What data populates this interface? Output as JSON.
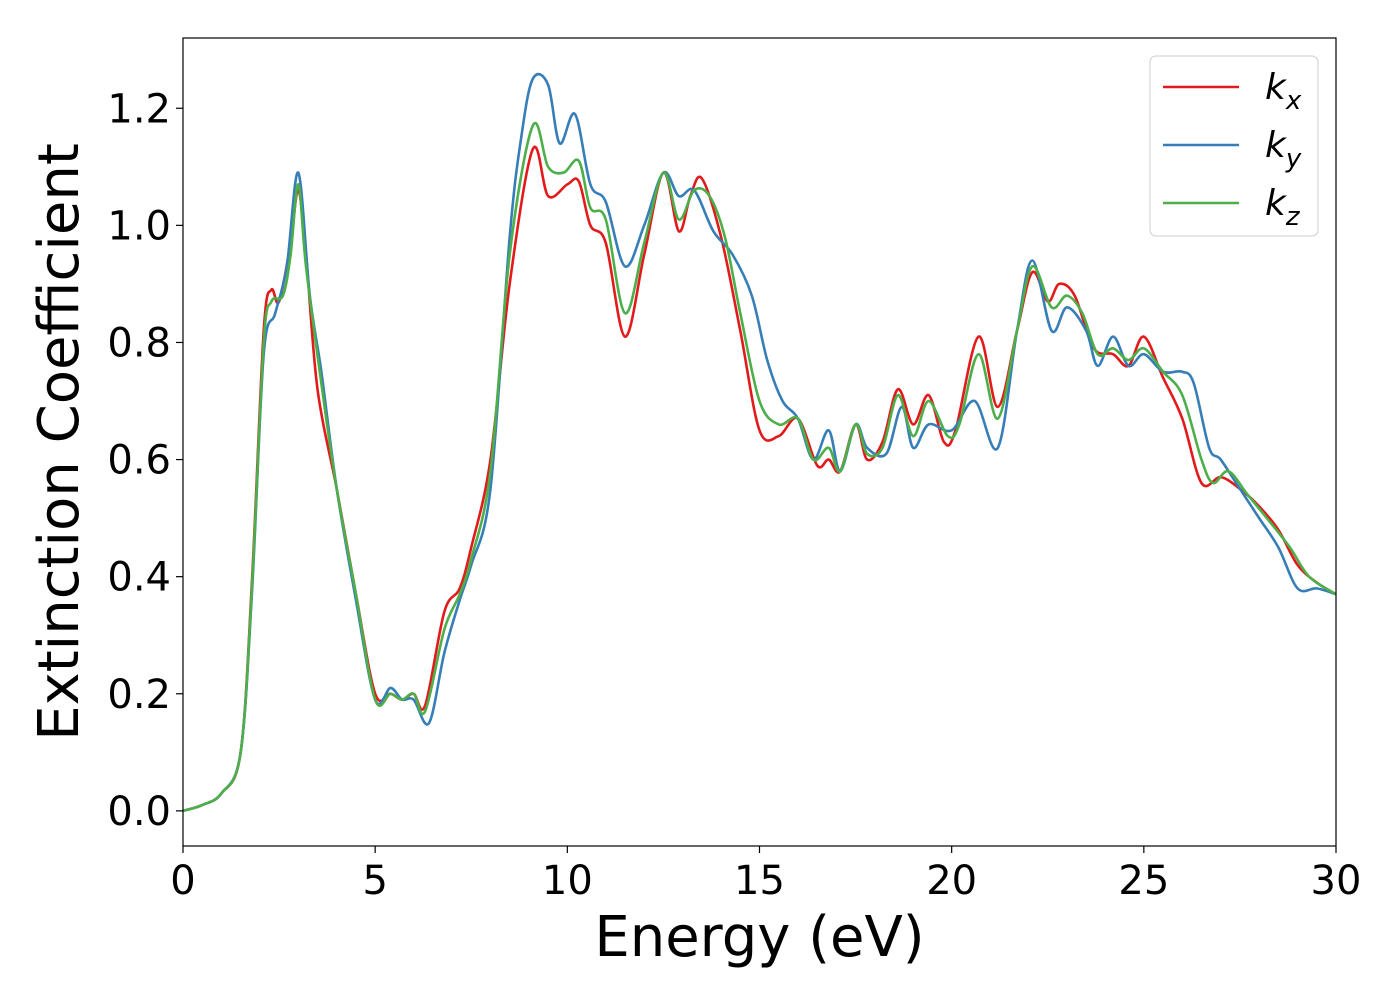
{
  "chart_data": {
    "type": "line",
    "title": "",
    "xlabel": "Energy (eV)",
    "ylabel": "Extinction Coefficient",
    "xlim": [
      0,
      30
    ],
    "ylim": [
      -0.06,
      1.32
    ],
    "xticks": [
      0,
      5,
      10,
      15,
      20,
      25,
      30
    ],
    "yticks": [
      0.0,
      0.2,
      0.4,
      0.6,
      0.8,
      1.0,
      1.2
    ],
    "xtick_labels": [
      "0",
      "5",
      "10",
      "15",
      "20",
      "25",
      "30"
    ],
    "ytick_labels": [
      "0.0",
      "0.2",
      "0.4",
      "0.6",
      "0.8",
      "1.0",
      "1.2"
    ],
    "grid": false,
    "legend_position": "top-right",
    "series": [
      {
        "name": "k_x",
        "label_base": "k",
        "label_sub": "x",
        "color": "#e31a1c",
        "points": [
          [
            0,
            0
          ],
          [
            0.5,
            0.01
          ],
          [
            1,
            0.03
          ],
          [
            1.5,
            0.1
          ],
          [
            1.8,
            0.4
          ],
          [
            2.1,
            0.82
          ],
          [
            2.3,
            0.89
          ],
          [
            2.5,
            0.87
          ],
          [
            2.8,
            0.97
          ],
          [
            3.0,
            1.06
          ],
          [
            3.2,
            0.95
          ],
          [
            3.5,
            0.72
          ],
          [
            4,
            0.55
          ],
          [
            4.5,
            0.37
          ],
          [
            5,
            0.2
          ],
          [
            5.4,
            0.2
          ],
          [
            5.7,
            0.19
          ],
          [
            6.0,
            0.2
          ],
          [
            6.3,
            0.18
          ],
          [
            6.8,
            0.34
          ],
          [
            7.2,
            0.38
          ],
          [
            7.5,
            0.45
          ],
          [
            8,
            0.6
          ],
          [
            8.5,
            0.9
          ],
          [
            9.1,
            1.13
          ],
          [
            9.5,
            1.05
          ],
          [
            10,
            1.07
          ],
          [
            10.3,
            1.075
          ],
          [
            10.6,
            1.0
          ],
          [
            11,
            0.97
          ],
          [
            11.5,
            0.81
          ],
          [
            12,
            0.95
          ],
          [
            12.5,
            1.09
          ],
          [
            12.9,
            0.99
          ],
          [
            13.2,
            1.05
          ],
          [
            13.5,
            1.08
          ],
          [
            14,
            0.98
          ],
          [
            14.5,
            0.82
          ],
          [
            15,
            0.65
          ],
          [
            15.5,
            0.64
          ],
          [
            16,
            0.67
          ],
          [
            16.5,
            0.59
          ],
          [
            16.8,
            0.6
          ],
          [
            17.1,
            0.58
          ],
          [
            17.5,
            0.66
          ],
          [
            17.8,
            0.6
          ],
          [
            18.2,
            0.63
          ],
          [
            18.6,
            0.72
          ],
          [
            19.0,
            0.66
          ],
          [
            19.4,
            0.71
          ],
          [
            19.8,
            0.63
          ],
          [
            20.1,
            0.65
          ],
          [
            20.7,
            0.81
          ],
          [
            21.2,
            0.69
          ],
          [
            21.7,
            0.82
          ],
          [
            22.1,
            0.92
          ],
          [
            22.5,
            0.87
          ],
          [
            22.8,
            0.9
          ],
          [
            23.2,
            0.88
          ],
          [
            23.7,
            0.79
          ],
          [
            24.2,
            0.78
          ],
          [
            24.6,
            0.76
          ],
          [
            25.0,
            0.81
          ],
          [
            25.5,
            0.74
          ],
          [
            26,
            0.67
          ],
          [
            26.5,
            0.56
          ],
          [
            27,
            0.57
          ],
          [
            27.5,
            0.55
          ],
          [
            28,
            0.52
          ],
          [
            28.5,
            0.48
          ],
          [
            29,
            0.42
          ],
          [
            29.5,
            0.39
          ],
          [
            30,
            0.37
          ]
        ]
      },
      {
        "name": "k_y",
        "label_base": "k",
        "label_sub": "y",
        "color": "#377eb8",
        "points": [
          [
            0,
            0
          ],
          [
            0.5,
            0.01
          ],
          [
            1,
            0.03
          ],
          [
            1.5,
            0.1
          ],
          [
            1.8,
            0.38
          ],
          [
            2.1,
            0.78
          ],
          [
            2.4,
            0.85
          ],
          [
            2.7,
            0.93
          ],
          [
            3.0,
            1.09
          ],
          [
            3.3,
            0.88
          ],
          [
            3.6,
            0.75
          ],
          [
            4,
            0.55
          ],
          [
            4.5,
            0.36
          ],
          [
            5,
            0.19
          ],
          [
            5.4,
            0.21
          ],
          [
            5.7,
            0.19
          ],
          [
            6.0,
            0.19
          ],
          [
            6.4,
            0.15
          ],
          [
            6.8,
            0.27
          ],
          [
            7.2,
            0.36
          ],
          [
            7.5,
            0.42
          ],
          [
            8,
            0.55
          ],
          [
            8.5,
            0.98
          ],
          [
            8.8,
            1.15
          ],
          [
            9.1,
            1.25
          ],
          [
            9.5,
            1.24
          ],
          [
            9.8,
            1.14
          ],
          [
            10.2,
            1.19
          ],
          [
            10.6,
            1.07
          ],
          [
            11,
            1.04
          ],
          [
            11.5,
            0.93
          ],
          [
            12,
            1.0
          ],
          [
            12.5,
            1.09
          ],
          [
            12.9,
            1.05
          ],
          [
            13.3,
            1.06
          ],
          [
            13.8,
            0.99
          ],
          [
            14.3,
            0.95
          ],
          [
            14.8,
            0.88
          ],
          [
            15.2,
            0.77
          ],
          [
            15.6,
            0.7
          ],
          [
            16,
            0.67
          ],
          [
            16.4,
            0.6
          ],
          [
            16.8,
            0.65
          ],
          [
            17.1,
            0.58
          ],
          [
            17.5,
            0.66
          ],
          [
            17.8,
            0.62
          ],
          [
            18.3,
            0.61
          ],
          [
            18.7,
            0.69
          ],
          [
            19.0,
            0.62
          ],
          [
            19.4,
            0.66
          ],
          [
            20.0,
            0.65
          ],
          [
            20.6,
            0.7
          ],
          [
            21.2,
            0.62
          ],
          [
            21.7,
            0.82
          ],
          [
            22.1,
            0.94
          ],
          [
            22.6,
            0.82
          ],
          [
            23.0,
            0.86
          ],
          [
            23.5,
            0.82
          ],
          [
            23.8,
            0.76
          ],
          [
            24.2,
            0.81
          ],
          [
            24.6,
            0.76
          ],
          [
            25.0,
            0.78
          ],
          [
            25.5,
            0.75
          ],
          [
            26.0,
            0.75
          ],
          [
            26.3,
            0.73
          ],
          [
            26.7,
            0.62
          ],
          [
            27,
            0.6
          ],
          [
            27.5,
            0.55
          ],
          [
            28,
            0.5
          ],
          [
            28.5,
            0.45
          ],
          [
            29,
            0.38
          ],
          [
            29.5,
            0.38
          ],
          [
            30,
            0.37
          ]
        ]
      },
      {
        "name": "k_z",
        "label_base": "k",
        "label_sub": "z",
        "color": "#4daf4a",
        "points": [
          [
            0,
            0
          ],
          [
            0.5,
            0.01
          ],
          [
            1,
            0.03
          ],
          [
            1.5,
            0.1
          ],
          [
            1.8,
            0.39
          ],
          [
            2.1,
            0.8
          ],
          [
            2.3,
            0.87
          ],
          [
            2.6,
            0.88
          ],
          [
            2.8,
            0.95
          ],
          [
            3.0,
            1.07
          ],
          [
            3.2,
            0.93
          ],
          [
            3.6,
            0.73
          ],
          [
            4,
            0.55
          ],
          [
            4.5,
            0.37
          ],
          [
            5,
            0.19
          ],
          [
            5.4,
            0.2
          ],
          [
            5.7,
            0.19
          ],
          [
            6.0,
            0.2
          ],
          [
            6.3,
            0.17
          ],
          [
            6.8,
            0.31
          ],
          [
            7.2,
            0.37
          ],
          [
            7.5,
            0.43
          ],
          [
            8,
            0.58
          ],
          [
            8.5,
            0.95
          ],
          [
            9.1,
            1.17
          ],
          [
            9.5,
            1.1
          ],
          [
            9.9,
            1.09
          ],
          [
            10.3,
            1.11
          ],
          [
            10.6,
            1.03
          ],
          [
            11,
            1.01
          ],
          [
            11.5,
            0.85
          ],
          [
            12,
            0.97
          ],
          [
            12.5,
            1.09
          ],
          [
            12.9,
            1.01
          ],
          [
            13.3,
            1.06
          ],
          [
            13.7,
            1.05
          ],
          [
            14.1,
            0.98
          ],
          [
            14.5,
            0.85
          ],
          [
            15,
            0.7
          ],
          [
            15.5,
            0.66
          ],
          [
            16,
            0.67
          ],
          [
            16.4,
            0.6
          ],
          [
            16.8,
            0.62
          ],
          [
            17.1,
            0.58
          ],
          [
            17.5,
            0.66
          ],
          [
            17.8,
            0.61
          ],
          [
            18.2,
            0.62
          ],
          [
            18.6,
            0.71
          ],
          [
            19.0,
            0.64
          ],
          [
            19.4,
            0.7
          ],
          [
            19.9,
            0.64
          ],
          [
            20.2,
            0.66
          ],
          [
            20.7,
            0.78
          ],
          [
            21.2,
            0.67
          ],
          [
            21.7,
            0.82
          ],
          [
            22.1,
            0.93
          ],
          [
            22.6,
            0.86
          ],
          [
            23.0,
            0.88
          ],
          [
            23.4,
            0.85
          ],
          [
            23.8,
            0.78
          ],
          [
            24.2,
            0.79
          ],
          [
            24.6,
            0.77
          ],
          [
            25.0,
            0.79
          ],
          [
            25.5,
            0.75
          ],
          [
            26.0,
            0.71
          ],
          [
            26.5,
            0.6
          ],
          [
            26.8,
            0.56
          ],
          [
            27.2,
            0.58
          ],
          [
            27.7,
            0.54
          ],
          [
            28.2,
            0.5
          ],
          [
            28.8,
            0.45
          ],
          [
            29.3,
            0.4
          ],
          [
            30,
            0.37
          ]
        ]
      }
    ]
  }
}
